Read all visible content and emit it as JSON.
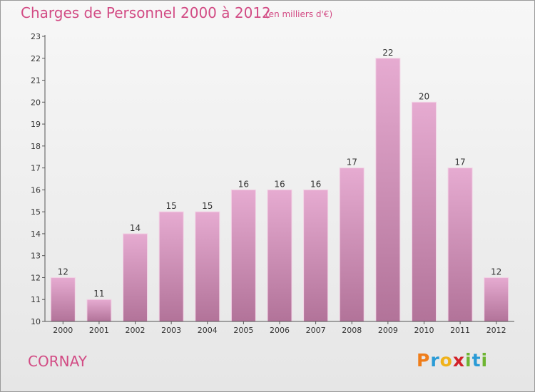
{
  "header": {
    "title": "Charges de Personnel 2000 à 2012",
    "subtitle": "(en milliers d'€)"
  },
  "footer": {
    "commune": "CORNAY",
    "brand": "Proxiti"
  },
  "colors": {
    "bar_light": "#e6abd1",
    "bar_dark": "#b27399",
    "title": "#d24b84",
    "brand_letters": [
      "#ef7d1a",
      "#2a9bd6",
      "#f0b21a",
      "#d2222a",
      "#6eb532",
      "#2a9bd6",
      "#6eb532"
    ]
  },
  "chart_data": {
    "type": "bar",
    "title": "Charges de Personnel 2000 à 2012",
    "subtitle": "(en milliers d'€)",
    "categories": [
      "2000",
      "2001",
      "2002",
      "2003",
      "2004",
      "2005",
      "2006",
      "2007",
      "2008",
      "2009",
      "2010",
      "2011",
      "2012"
    ],
    "values": [
      12,
      11,
      14,
      15,
      15,
      16,
      16,
      16,
      17,
      22,
      20,
      17,
      12
    ],
    "ylim": [
      10,
      23
    ],
    "yticks": [
      10,
      11,
      12,
      13,
      14,
      15,
      16,
      17,
      18,
      19,
      20,
      21,
      22,
      23
    ],
    "grid": false,
    "data_labels": true
  }
}
